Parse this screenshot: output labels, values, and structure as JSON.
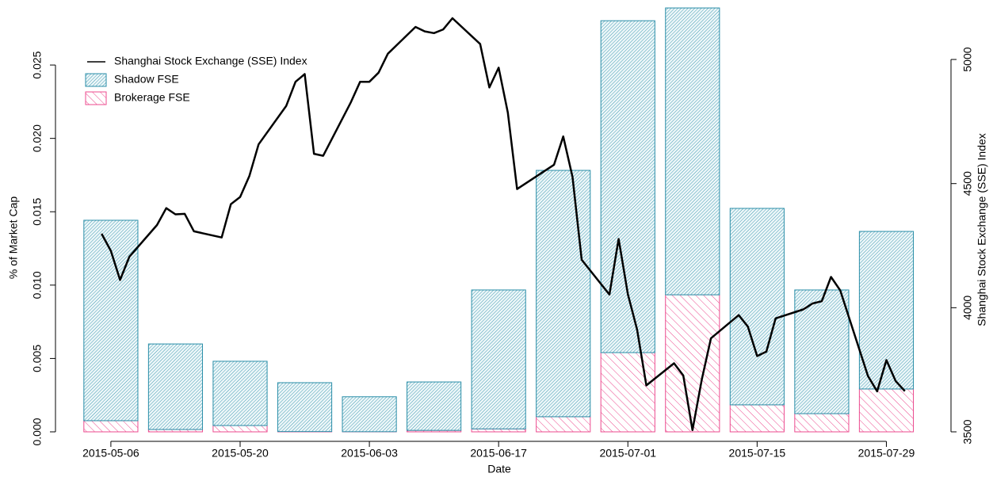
{
  "chart_data": {
    "type": "bar",
    "x_label": "Date",
    "y_label": "% of Market Cap",
    "y2_label": "Shanghai Stock Exchange (SSE) Index",
    "legend": "top-left",
    "x": [
      "2015-05-06",
      "2015-05-13",
      "2015-05-20",
      "2015-05-27",
      "2015-06-03",
      "2015-06-10",
      "2015-06-17",
      "2015-06-24",
      "2015-07-01",
      "2015-07-08",
      "2015-07-15",
      "2015-07-22",
      "2015-07-29"
    ],
    "xlim": [
      "2015-04-30",
      "2015-08-05"
    ],
    "xticks": [
      "2015-05-06",
      "2015-05-20",
      "2015-06-03",
      "2015-06-17",
      "2015-07-01",
      "2015-07-15",
      "2015-07-29"
    ],
    "ylim": [
      0,
      0.029
    ],
    "yticks": [
      {
        "value": 0,
        "label": "0.000"
      },
      {
        "value": 0.005,
        "label": "0.005"
      },
      {
        "value": 0.01,
        "label": "0.010"
      },
      {
        "value": 0.015,
        "label": "0.015"
      },
      {
        "value": 0.02,
        "label": "0.020"
      },
      {
        "value": 0.025,
        "label": "0.025"
      }
    ],
    "y2lim": [
      3500,
      5214
    ],
    "y2ticks": [
      3500,
      4000,
      4500,
      5000
    ],
    "series": [
      {
        "name": "Shanghai Stock Exchange (SSE) Index",
        "type": "line",
        "axis": "y2",
        "color": "#000000",
        "x": [
          "2015-05-05",
          "2015-05-06",
          "2015-05-07",
          "2015-05-08",
          "2015-05-11",
          "2015-05-12",
          "2015-05-13",
          "2015-05-14",
          "2015-05-15",
          "2015-05-18",
          "2015-05-19",
          "2015-05-20",
          "2015-05-21",
          "2015-05-22",
          "2015-05-25",
          "2015-05-26",
          "2015-05-27",
          "2015-05-28",
          "2015-05-29",
          "2015-06-01",
          "2015-06-02",
          "2015-06-03",
          "2015-06-04",
          "2015-06-05",
          "2015-06-08",
          "2015-06-09",
          "2015-06-10",
          "2015-06-11",
          "2015-06-12",
          "2015-06-15",
          "2015-06-16",
          "2015-06-17",
          "2015-06-18",
          "2015-06-19",
          "2015-06-23",
          "2015-06-24",
          "2015-06-25",
          "2015-06-26",
          "2015-06-29",
          "2015-06-30",
          "2015-07-01",
          "2015-07-02",
          "2015-07-03",
          "2015-07-06",
          "2015-07-07",
          "2015-07-08",
          "2015-07-09",
          "2015-07-10",
          "2015-07-13",
          "2015-07-14",
          "2015-07-15",
          "2015-07-16",
          "2015-07-17",
          "2015-07-20",
          "2015-07-21",
          "2015-07-22",
          "2015-07-23",
          "2015-07-24",
          "2015-07-27",
          "2015-07-28",
          "2015-07-29",
          "2015-07-30",
          "2015-07-31"
        ],
        "values": [
          4298,
          4229,
          4112,
          4205,
          4333,
          4401,
          4376,
          4378,
          4308,
          4283,
          4417,
          4446,
          4530,
          4658,
          4813,
          4910,
          4941,
          4620,
          4612,
          4828,
          4910,
          4910,
          4947,
          5023,
          5131,
          5113,
          5106,
          5121,
          5166,
          5062,
          4887,
          4967,
          4786,
          4478,
          4576,
          4690,
          4527,
          4193,
          4053,
          4277,
          4054,
          3912,
          3687,
          3776,
          3727,
          3507,
          3710,
          3877,
          3970,
          3924,
          3805,
          3823,
          3957,
          3993,
          4017,
          4026,
          4124,
          4070,
          3725,
          3663,
          3789,
          3705,
          3664
        ]
      },
      {
        "name": "Shadow FSE",
        "color": "#2a8ea8",
        "values": [
          0.01366,
          0.00583,
          0.00438,
          0.00333,
          0.00238,
          0.0033,
          0.00947,
          0.01679,
          0.02262,
          0.01955,
          0.01339,
          0.00843,
          0.01074
        ]
      },
      {
        "name": "Brokerage FSE",
        "color": "#ec4a8e",
        "values": [
          0.00076,
          0.00016,
          0.00043,
          2e-05,
          1e-05,
          0.0001,
          0.0002,
          0.00103,
          0.0054,
          0.00934,
          0.00184,
          0.00124,
          0.00292
        ]
      }
    ]
  }
}
